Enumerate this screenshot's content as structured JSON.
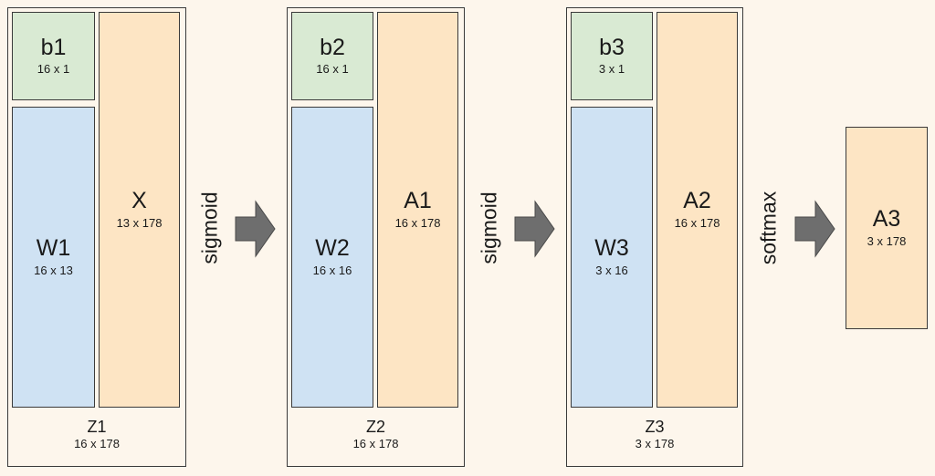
{
  "layers": [
    {
      "bias": {
        "name": "b1",
        "dim": "16 x 1"
      },
      "weight": {
        "name": "W1",
        "dim": "16 x 13"
      },
      "input": {
        "name": "X",
        "dim": "13 x 178"
      },
      "output": {
        "name": "Z1",
        "dim": "16 x 178"
      }
    },
    {
      "bias": {
        "name": "b2",
        "dim": "16 x 1"
      },
      "weight": {
        "name": "W2",
        "dim": "16 x 16"
      },
      "input": {
        "name": "A1",
        "dim": "16 x 178"
      },
      "output": {
        "name": "Z2",
        "dim": "16 x 178"
      }
    },
    {
      "bias": {
        "name": "b3",
        "dim": "3 x 1"
      },
      "weight": {
        "name": "W3",
        "dim": "3 x 16"
      },
      "input": {
        "name": "A2",
        "dim": "16 x 178"
      },
      "output": {
        "name": "Z3",
        "dim": "3 x 178"
      }
    }
  ],
  "activations": [
    "sigmoid",
    "sigmoid",
    "softmax"
  ],
  "final": {
    "name": "A3",
    "dim": "3 x 178"
  },
  "colors": {
    "bias": "#d9ead3",
    "weight": "#cfe2f3",
    "activation": "#fde5c4",
    "arrow": "#6e6e6e",
    "background": "#fdf6ec"
  }
}
